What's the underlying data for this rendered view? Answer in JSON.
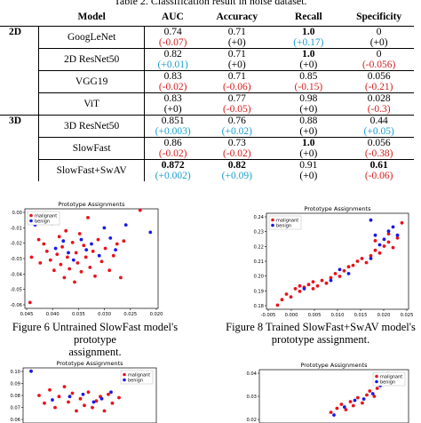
{
  "table": {
    "caption": "Table 2. Classification result in noise dataset.",
    "headers": [
      "Model",
      "AUC",
      "Accuracy",
      "Recall",
      "Specificity"
    ],
    "sections": [
      {
        "label": "2D",
        "rows": [
          {
            "model": "GoogLeNet",
            "auc": "0.74",
            "auc_d": "(-0.07)",
            "acc": "0.71",
            "acc_d": "(+0)",
            "rec": "1.0",
            "rec_d": "(+0.17)",
            "spec": "0",
            "spec_d": "(+0)"
          },
          {
            "model": "2D ResNet50",
            "auc": "0.82",
            "auc_d": "(+0.01)",
            "acc": "0.71",
            "acc_d": "(+0)",
            "rec": "1.0",
            "rec_d": "(+0)",
            "spec": "0",
            "spec_d": "(-0.056)"
          },
          {
            "model": "VGG19",
            "auc": "0.83",
            "auc_d": "(-0.02)",
            "acc": "0.71",
            "acc_d": "(-0.06)",
            "rec": "0.85",
            "rec_d": "(-0.15)",
            "spec": "0.056",
            "spec_d": "(-0.21)"
          },
          {
            "model": "ViT",
            "auc": "0.83",
            "auc_d": "(+0)",
            "acc": "0.77",
            "acc_d": "(-0.05)",
            "rec": "0.98",
            "rec_d": "(+0)",
            "spec": "0.028",
            "spec_d": "(-0.3)"
          }
        ]
      },
      {
        "label": "3D",
        "rows": [
          {
            "model": "3D ResNet50",
            "auc": "0.851",
            "auc_d": "(+0.003)",
            "acc": "0.76",
            "acc_d": "(+0.02)",
            "rec": "0.88",
            "rec_d": "(+0)",
            "spec": "0.44",
            "spec_d": "(+0.05)"
          },
          {
            "model": "SlowFast",
            "auc": "0.86",
            "auc_d": "(-0.02)",
            "acc": "0.73",
            "acc_d": "(-0.02)",
            "rec": "1.0",
            "rec_d": "(+0)",
            "spec": "0.056",
            "spec_d": "(-0.38)"
          },
          {
            "model": "SlowFast+SwAV",
            "auc": "0.872",
            "auc_d": "(+0.002)",
            "acc": "0.82",
            "acc_d": "(+0.09)",
            "rec": "0.91",
            "rec_d": "(+0)",
            "spec": "0.61",
            "spec_d": "(-0.06)"
          }
        ]
      }
    ]
  },
  "colors": {
    "negative": "#d61e1e",
    "positive": "#1aa0d0",
    "malignant": "#e8141c",
    "benign": "#1a1ae6"
  },
  "figures": {
    "fig6_caption_1": "Figure 6 Untrained SlowFast model's prototype",
    "fig6_caption_2": "assignment.",
    "fig8_caption_1": "Figure 8 Trained SlowFast+SwAV model's",
    "fig8_caption_2": "prototype assignment."
  },
  "chart_data": [
    {
      "type": "scatter",
      "title": "Prototype Assignments",
      "legend": [
        "malignant",
        "benign"
      ],
      "legend_position": "top-left",
      "x_ticks": [
        "0.045",
        "0.040",
        "0.035",
        "0.030",
        "0.025",
        "0.020"
      ],
      "y_ticks": [
        "0.00",
        "-0.01",
        "-0.02",
        "-0.03",
        "-0.04",
        "-0.05",
        "-0.06"
      ],
      "xlim": [
        0.0455,
        0.0195
      ],
      "ylim": [
        -0.066,
        0.002
      ],
      "series": [
        {
          "name": "malignant",
          "points": [
            [
              0.0442,
              -0.031
            ],
            [
              0.0428,
              -0.019
            ],
            [
              0.0425,
              -0.035
            ],
            [
              0.0418,
              -0.022
            ],
            [
              0.0412,
              -0.027
            ],
            [
              0.0405,
              -0.033
            ],
            [
              0.0402,
              -0.008
            ],
            [
              0.0398,
              -0.04
            ],
            [
              0.0392,
              -0.029
            ],
            [
              0.0388,
              -0.017
            ],
            [
              0.0385,
              -0.036
            ],
            [
              0.0382,
              -0.024
            ],
            [
              0.0378,
              -0.045
            ],
            [
              0.0375,
              -0.013
            ],
            [
              0.0372,
              -0.031
            ],
            [
              0.0368,
              -0.039
            ],
            [
              0.0362,
              -0.021
            ],
            [
              0.0358,
              -0.048
            ],
            [
              0.0355,
              -0.028
            ],
            [
              0.0352,
              -0.035
            ],
            [
              0.0348,
              -0.015
            ],
            [
              0.0345,
              -0.041
            ],
            [
              0.034,
              -0.023
            ],
            [
              0.0336,
              -0.031
            ],
            [
              0.0332,
              -0.004
            ],
            [
              0.0328,
              -0.038
            ],
            [
              0.0322,
              -0.027
            ],
            [
              0.0318,
              -0.044
            ],
            [
              0.0312,
              -0.019
            ],
            [
              0.0305,
              -0.034
            ],
            [
              0.0298,
              -0.025
            ],
            [
              0.029,
              -0.04
            ],
            [
              0.0282,
              -0.03
            ],
            [
              0.0275,
              -0.022
            ],
            [
              0.0268,
              -0.045
            ],
            [
              0.0262,
              -0.02
            ],
            [
              0.023,
              0.001
            ],
            [
              0.0445,
              -0.062
            ]
          ]
        },
        {
          "name": "benign",
          "points": [
            [
              0.0435,
              -0.009
            ],
            [
              0.0395,
              -0.025
            ],
            [
              0.038,
              -0.02
            ],
            [
              0.037,
              -0.028
            ],
            [
              0.036,
              -0.033
            ],
            [
              0.0345,
              -0.019
            ],
            [
              0.0335,
              -0.026
            ],
            [
              0.0325,
              -0.022
            ],
            [
              0.031,
              -0.03
            ],
            [
              0.03,
              -0.011
            ],
            [
              0.0288,
              -0.018
            ],
            [
              0.0278,
              -0.026
            ],
            [
              0.0258,
              -0.009
            ],
            [
              0.021,
              -0.014
            ]
          ]
        }
      ]
    },
    {
      "type": "scatter",
      "title": "Prototype Assignments",
      "legend": [
        "malignant",
        "benign"
      ],
      "legend_position": "top-left",
      "x_ticks": [
        "-0.005",
        "0.000",
        "0.005",
        "0.010",
        "0.015",
        "0.020",
        "0.025"
      ],
      "y_ticks": [
        "0.24",
        "0.23",
        "0.22",
        "0.21",
        "0.20",
        "0.19",
        "0.18"
      ],
      "xlim": [
        -0.0055,
        0.0265
      ],
      "ylim": [
        0.175,
        0.245
      ],
      "series": [
        {
          "name": "malignant",
          "points": [
            [
              -0.003,
              0.178
            ],
            [
              -0.002,
              0.182
            ],
            [
              -0.001,
              0.186
            ],
            [
              0.0,
              0.184
            ],
            [
              0.001,
              0.19
            ],
            [
              0.002,
              0.188
            ],
            [
              0.002,
              0.192
            ],
            [
              0.003,
              0.191
            ],
            [
              0.004,
              0.193
            ],
            [
              0.005,
              0.19
            ],
            [
              0.005,
              0.195
            ],
            [
              0.006,
              0.192
            ],
            [
              0.007,
              0.196
            ],
            [
              0.008,
              0.194
            ],
            [
              0.009,
              0.198
            ],
            [
              0.01,
              0.201
            ],
            [
              0.011,
              0.199
            ],
            [
              0.012,
              0.203
            ],
            [
              0.013,
              0.206
            ],
            [
              0.014,
              0.207
            ],
            [
              0.015,
              0.21
            ],
            [
              0.016,
              0.212
            ],
            [
              0.017,
              0.209
            ],
            [
              0.018,
              0.214
            ],
            [
              0.019,
              0.218
            ],
            [
              0.02,
              0.216
            ],
            [
              0.021,
              0.221
            ],
            [
              0.022,
              0.224
            ],
            [
              0.023,
              0.22
            ],
            [
              0.024,
              0.227
            ],
            [
              0.022,
              0.23
            ],
            [
              0.025,
              0.238
            ],
            [
              0.019,
              0.225
            ]
          ]
        },
        {
          "name": "benign",
          "points": [
            [
              0.003,
              0.19
            ],
            [
              0.009,
              0.196
            ],
            [
              0.011,
              0.204
            ],
            [
              0.013,
              0.201
            ],
            [
              0.018,
              0.212
            ],
            [
              0.02,
              0.222
            ],
            [
              0.021,
              0.226
            ],
            [
              0.022,
              0.232
            ],
            [
              0.023,
              0.235
            ],
            [
              0.024,
              0.229
            ],
            [
              0.018,
              0.24
            ],
            [
              0.019,
              0.229
            ]
          ]
        }
      ]
    },
    {
      "type": "scatter",
      "title": "Prototype Assignments",
      "legend": [
        "malignant",
        "benign"
      ],
      "legend_position": "top-right",
      "y_ticks": [
        "0.10",
        "0.09",
        "0.08",
        "0.07",
        "0.06"
      ],
      "xlim": [
        0,
        1
      ],
      "ylim": [
        0.055,
        0.105
      ],
      "series": [
        {
          "name": "malignant",
          "points": [
            [
              0.12,
              0.08
            ],
            [
              0.16,
              0.073
            ],
            [
              0.2,
              0.085
            ],
            [
              0.24,
              0.069
            ],
            [
              0.27,
              0.079
            ],
            [
              0.31,
              0.088
            ],
            [
              0.34,
              0.074
            ],
            [
              0.37,
              0.082
            ],
            [
              0.4,
              0.066
            ],
            [
              0.43,
              0.077
            ],
            [
              0.46,
              0.071
            ],
            [
              0.49,
              0.083
            ],
            [
              0.52,
              0.069
            ],
            [
              0.55,
              0.075
            ],
            [
              0.58,
              0.079
            ],
            [
              0.61,
              0.066
            ],
            [
              0.64,
              0.081
            ],
            [
              0.67,
              0.073
            ],
            [
              0.72,
              0.078
            ]
          ]
        },
        {
          "name": "benign",
          "points": [
            [
              0.06,
              0.102
            ],
            [
              0.22,
              0.076
            ],
            [
              0.35,
              0.079
            ],
            [
              0.45,
              0.081
            ],
            [
              0.53,
              0.074
            ],
            [
              0.59,
              0.077
            ],
            [
              0.66,
              0.083
            ]
          ]
        }
      ]
    },
    {
      "type": "scatter",
      "title": "Prototype Assignments",
      "legend": [
        "malignant",
        "benign"
      ],
      "legend_position": "top-right",
      "y_ticks": [
        "0.04",
        "0.03",
        "0.02"
      ],
      "xlim": [
        0,
        1
      ],
      "ylim": [
        0.012,
        0.052
      ],
      "series": [
        {
          "name": "malignant",
          "points": [
            [
              0.48,
              0.02
            ],
            [
              0.52,
              0.023
            ],
            [
              0.55,
              0.026
            ],
            [
              0.58,
              0.022
            ],
            [
              0.61,
              0.028
            ],
            [
              0.63,
              0.025
            ],
            [
              0.66,
              0.031
            ],
            [
              0.69,
              0.027
            ],
            [
              0.72,
              0.033
            ],
            [
              0.74,
              0.036
            ],
            [
              0.77,
              0.032
            ],
            [
              0.79,
              0.038
            ],
            [
              0.82,
              0.043
            ],
            [
              0.84,
              0.047
            ]
          ]
        },
        {
          "name": "benign",
          "points": [
            [
              0.5,
              0.018
            ],
            [
              0.57,
              0.024
            ],
            [
              0.64,
              0.029
            ],
            [
              0.7,
              0.03
            ],
            [
              0.76,
              0.034
            ],
            [
              0.81,
              0.04
            ],
            [
              0.86,
              0.049
            ]
          ]
        }
      ]
    }
  ]
}
